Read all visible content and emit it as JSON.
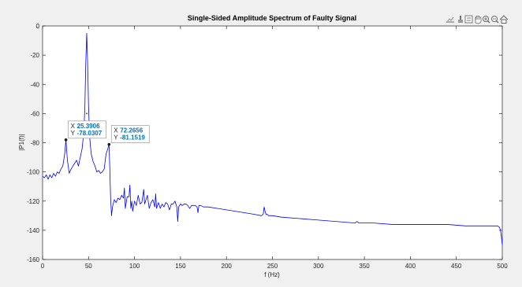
{
  "chart_data": {
    "type": "line",
    "title": "Single-Sided Amplitude Spectrum of Faulty Signal",
    "xlabel": "f (Hz)",
    "ylabel": "|P1(f)|",
    "xlim": [
      0,
      500
    ],
    "ylim": [
      -160,
      0
    ],
    "xticks": [
      "0",
      "50",
      "100",
      "150",
      "200",
      "250",
      "300",
      "350",
      "400",
      "450",
      "500"
    ],
    "yticks": [
      "0",
      "-20",
      "-40",
      "-60",
      "-80",
      "-100",
      "-120",
      "-140",
      "-160"
    ],
    "grid": false,
    "series": [
      {
        "color": "#0000ff",
        "x": [
          0,
          2,
          4,
          6,
          8,
          10,
          12,
          14,
          16,
          18,
          20,
          22,
          24,
          25.39,
          27,
          29,
          31,
          33,
          35,
          37,
          39,
          41,
          43,
          45,
          46,
          47,
          48,
          49,
          50,
          51,
          52,
          53,
          55,
          57,
          59,
          61,
          63,
          65,
          67,
          69,
          71,
          72.27,
          73,
          74,
          75,
          76,
          78,
          80,
          82,
          84,
          86,
          88,
          89,
          90,
          92,
          94,
          95,
          96,
          97,
          98,
          100,
          102,
          104,
          106,
          108,
          110,
          111,
          112,
          114,
          116,
          118,
          120,
          122,
          123,
          124,
          126,
          128,
          130,
          132,
          134,
          136,
          138,
          140,
          142,
          144,
          146,
          147,
          148,
          150,
          152,
          154,
          156,
          158,
          160,
          162,
          164,
          166,
          168,
          169,
          170,
          172,
          175,
          180,
          190,
          200,
          210,
          220,
          230,
          238,
          240,
          241,
          242,
          243,
          244,
          246,
          250,
          260,
          280,
          300,
          320,
          340,
          342,
          344,
          350,
          360,
          380,
          400,
          420,
          440,
          460,
          480,
          490,
          495,
          497,
          498,
          499,
          500
        ],
        "y": [
          -103,
          -104,
          -102,
          -105,
          -102,
          -104,
          -101,
          -103,
          -100,
          -101,
          -98,
          -96,
          -88,
          -78.03,
          -92,
          -101,
          -98,
          -96,
          -94,
          -92,
          -96,
          -90,
          -84,
          -72,
          -55,
          -25,
          -5,
          -25,
          -55,
          -74,
          -82,
          -88,
          -93,
          -96,
          -100,
          -99,
          -101,
          -100,
          -98,
          -88,
          -84,
          -81.15,
          -95,
          -118,
          -130,
          -124,
          -119,
          -121,
          -118,
          -119,
          -116,
          -118,
          -111,
          -125,
          -117,
          -117,
          -109,
          -125,
          -120,
          -127,
          -120,
          -123,
          -116,
          -122,
          -121,
          -112,
          -122,
          -120,
          -116,
          -125,
          -121,
          -119,
          -124,
          -115,
          -125,
          -121,
          -125,
          -122,
          -124,
          -121,
          -122,
          -126,
          -122,
          -122,
          -120,
          -124,
          -134,
          -124,
          -122,
          -123,
          -122,
          -122,
          -123,
          -125,
          -123,
          -123,
          -123,
          -124,
          -128,
          -123,
          -123,
          -124,
          -124,
          -125,
          -126,
          -127,
          -128,
          -129,
          -130,
          -129,
          -124,
          -127,
          -129,
          -129,
          -130,
          -130,
          -131,
          -132,
          -133,
          -134,
          -135,
          -134,
          -135,
          -135,
          -135,
          -136,
          -136,
          -136,
          -136,
          -137,
          -137,
          -137,
          -137,
          -138,
          -140,
          -144,
          -150
        ]
      }
    ],
    "datatips": [
      {
        "x_label": "X",
        "x_value": "25.3906",
        "y_label": "Y",
        "y_value": "-78.0307",
        "x": 25.39,
        "y": -78.03
      },
      {
        "x_label": "X",
        "x_value": "72.2656",
        "y_label": "Y",
        "y_value": "-81.1519",
        "x": 72.27,
        "y": -81.15
      }
    ],
    "toolbar": {
      "icons": [
        "export-icon",
        "brush-icon",
        "datatip-icon",
        "pan-icon",
        "zoom-in-icon",
        "zoom-out-icon",
        "home-icon"
      ]
    }
  }
}
